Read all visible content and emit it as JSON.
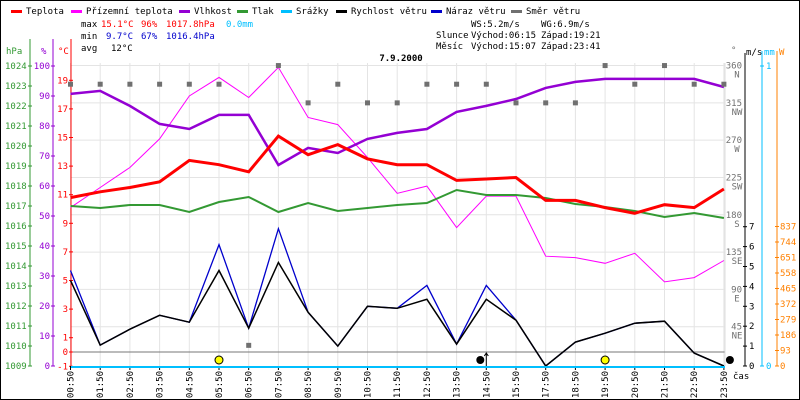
{
  "legend": [
    {
      "label": "Teplota",
      "color": "#ff0000"
    },
    {
      "label": "Přízemní teplota",
      "color": "#ff00ff"
    },
    {
      "label": "Vlhkost",
      "color": "#9400d3"
    },
    {
      "label": "Tlak",
      "color": "#339933"
    },
    {
      "label": "Srážky",
      "color": "#00bfff"
    },
    {
      "label": "Rychlost větru",
      "color": "#000000"
    },
    {
      "label": "Náraz větru",
      "color": "#0000cc"
    },
    {
      "label": "Směr větru",
      "color": "#707070"
    }
  ],
  "stats": {
    "max": {
      "label": "max",
      "temp": "15.1°C",
      "hum": "96%",
      "press": "1017.8hPa",
      "rain": "0.0mm"
    },
    "min": {
      "label": "min",
      "temp": "9.7°C",
      "hum": "67%",
      "press": "1016.4hPa"
    },
    "avg": {
      "label": "avg",
      "temp": "12°C"
    }
  },
  "wind_stats": {
    "ws": "WS:5.2m/s",
    "wg": "WG:6.9m/s"
  },
  "sun": {
    "label": "Slunce",
    "rise": "Východ:06:15",
    "set": "Západ:19:21"
  },
  "moon": {
    "label": "Měsíc",
    "rise": "Východ:15:07",
    "set": "Západ:23:41"
  },
  "chart_data": {
    "type": "line",
    "title": "7.9.2000",
    "xlabel": "čas",
    "x": [
      "00:50",
      "01:50",
      "02:50",
      "03:50",
      "04:50",
      "05:50",
      "06:50",
      "07:50",
      "08:50",
      "09:50",
      "10:50",
      "11:50",
      "12:50",
      "13:50",
      "14:50",
      "15:50",
      "17:50",
      "18:50",
      "19:50",
      "20:50",
      "21:50",
      "22:50",
      "23:50"
    ],
    "axes": {
      "hpa": {
        "unit": "hPa",
        "ticks": [
          "1024",
          "1023",
          "1022",
          "1021",
          "1020",
          "1019",
          "1018",
          "1017",
          "1016",
          "1015",
          "1014",
          "1013",
          "1012",
          "1011",
          "1010",
          "1009"
        ],
        "range": [
          1009,
          1024
        ]
      },
      "pct": {
        "unit": "%",
        "ticks": [
          "100",
          "90",
          "80",
          "70",
          "60",
          "50",
          "40",
          "30",
          "20",
          "10",
          "0"
        ],
        "range": [
          0,
          100
        ]
      },
      "temp": {
        "unit": "°C",
        "ticks": [
          "19",
          "17",
          "15",
          "13",
          "11",
          "9",
          "7",
          "5",
          "3",
          "1",
          "0",
          "-1"
        ],
        "range": [
          -1,
          19
        ]
      },
      "deg": {
        "unit": "°",
        "ticks": [
          {
            "v": "360",
            "d": "N"
          },
          {
            "v": "315",
            "d": "NW"
          },
          {
            "v": "270",
            "d": "W"
          },
          {
            "v": "225",
            "d": "SW"
          },
          {
            "v": "180",
            "d": "S"
          },
          {
            "v": "135",
            "d": "SE"
          },
          {
            "v": "90",
            "d": "E"
          },
          {
            "v": "45",
            "d": "NE"
          }
        ]
      },
      "ms": {
        "unit": "m/s",
        "ticks": [
          "7",
          "6",
          "5",
          "4",
          "3",
          "2",
          "1",
          "0"
        ],
        "range": [
          0,
          7
        ]
      },
      "mm": {
        "unit": "mm",
        "ticks": [
          "1",
          "0"
        ]
      },
      "w": {
        "unit": "W",
        "ticks": [
          "837",
          "744",
          "651",
          "558",
          "465",
          "372",
          "279",
          "186",
          "93",
          "0"
        ]
      }
    },
    "series": [
      {
        "name": "Teplota",
        "unit": "°C",
        "values": [
          10.8,
          11.2,
          11.5,
          11.9,
          13.4,
          13.1,
          12.6,
          15.1,
          13.8,
          14.5,
          13.5,
          13.1,
          13.1,
          12.0,
          12.1,
          12.2,
          10.6,
          10.6,
          10.1,
          9.7,
          10.3,
          10.1,
          11.4
        ]
      },
      {
        "name": "Přízemní teplota",
        "unit": "°C",
        "values": [
          10.1,
          11.5,
          12.9,
          14.9,
          17.9,
          19.2,
          17.8,
          19.9,
          16.4,
          15.9,
          13.6,
          11.1,
          11.6,
          8.7,
          10.9,
          10.9,
          6.7,
          6.6,
          6.2,
          6.9,
          4.9,
          5.2,
          6.4
        ]
      },
      {
        "name": "Vlhkost",
        "unit": "%",
        "values": [
          90.7,
          91.7,
          86.7,
          80.7,
          79,
          83.7,
          83.7,
          67,
          72.7,
          71,
          75.7,
          77.7,
          79,
          84.7,
          86.7,
          89,
          92.7,
          94.7,
          95.7,
          95.7,
          95.7,
          95.7,
          93
        ]
      },
      {
        "name": "Tlak",
        "unit": "hPa",
        "values": [
          1017.0,
          1016.9,
          1017.05,
          1017.05,
          1016.7,
          1017.2,
          1017.45,
          1016.7,
          1017.15,
          1016.75,
          1016.9,
          1017.05,
          1017.15,
          1017.8,
          1017.55,
          1017.55,
          1017.4,
          1017.1,
          1016.95,
          1016.75,
          1016.45,
          1016.65,
          1016.4
        ]
      },
      {
        "name": "Srážky",
        "unit": "mm",
        "values": [
          0,
          0,
          0,
          0,
          0,
          0,
          0,
          0,
          0,
          0,
          0,
          0,
          0,
          0,
          0,
          0,
          0,
          0,
          0,
          0,
          0,
          0,
          0
        ]
      },
      {
        "name": "Rychlost větru",
        "unit": "m/s",
        "values": [
          4.3,
          1.05,
          1.85,
          2.55,
          2.2,
          4.8,
          1.9,
          5.2,
          2.7,
          1.0,
          3.0,
          2.9,
          3.35,
          1.1,
          3.35,
          2.3,
          0,
          1.2,
          1.65,
          2.15,
          2.25,
          0.65,
          0
        ]
      },
      {
        "name": "Náraz větru",
        "unit": "m/s",
        "values": [
          4.8,
          1.05,
          1.85,
          2.55,
          2.2,
          6.1,
          1.9,
          6.9,
          2.7,
          1.0,
          3.0,
          2.9,
          4.05,
          1.1,
          4.05,
          2.3,
          0,
          1.2,
          1.65,
          2.15,
          2.25,
          0.65,
          0
        ]
      },
      {
        "name": "Směr větru",
        "unit": "°",
        "values": [
          337.5,
          337.5,
          337.5,
          337.5,
          337.5,
          337.5,
          22.5,
          360,
          315,
          337.5,
          315,
          315,
          337.5,
          337.5,
          337.5,
          315,
          315,
          315,
          360,
          337.5,
          360,
          337.5,
          337.5
        ]
      }
    ],
    "events": [
      {
        "type": "sunrise",
        "at": "05:50"
      },
      {
        "type": "moonrise",
        "at": "14:50"
      },
      {
        "type": "sunset",
        "at": "19:50"
      },
      {
        "type": "moonset",
        "at": "23:50"
      }
    ]
  }
}
